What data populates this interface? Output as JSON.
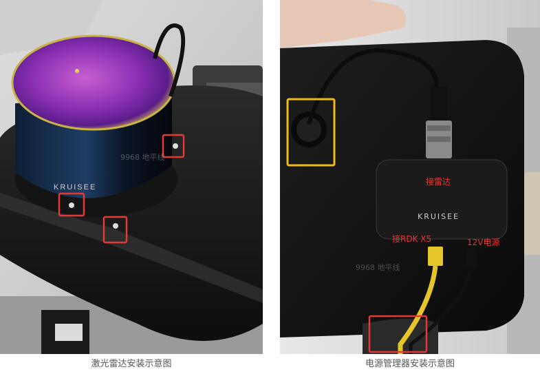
{
  "images": {
    "left": {
      "device_brand": "KRUISEE",
      "watermark": "9968 地平线",
      "highlight_color": "#e53935"
    },
    "right": {
      "device_brand": "KRUISEE",
      "watermark": "9968 地平线",
      "labels": {
        "radar_port": "接雷达",
        "rdk_port": "接RDK X5",
        "power_port": "12V电源"
      },
      "highlight_color_red": "#e53935",
      "highlight_color_yellow": "#f1b81c"
    }
  },
  "captions": {
    "left": "激光雷达安装示意图",
    "right": "电源管理器安装示意图"
  }
}
